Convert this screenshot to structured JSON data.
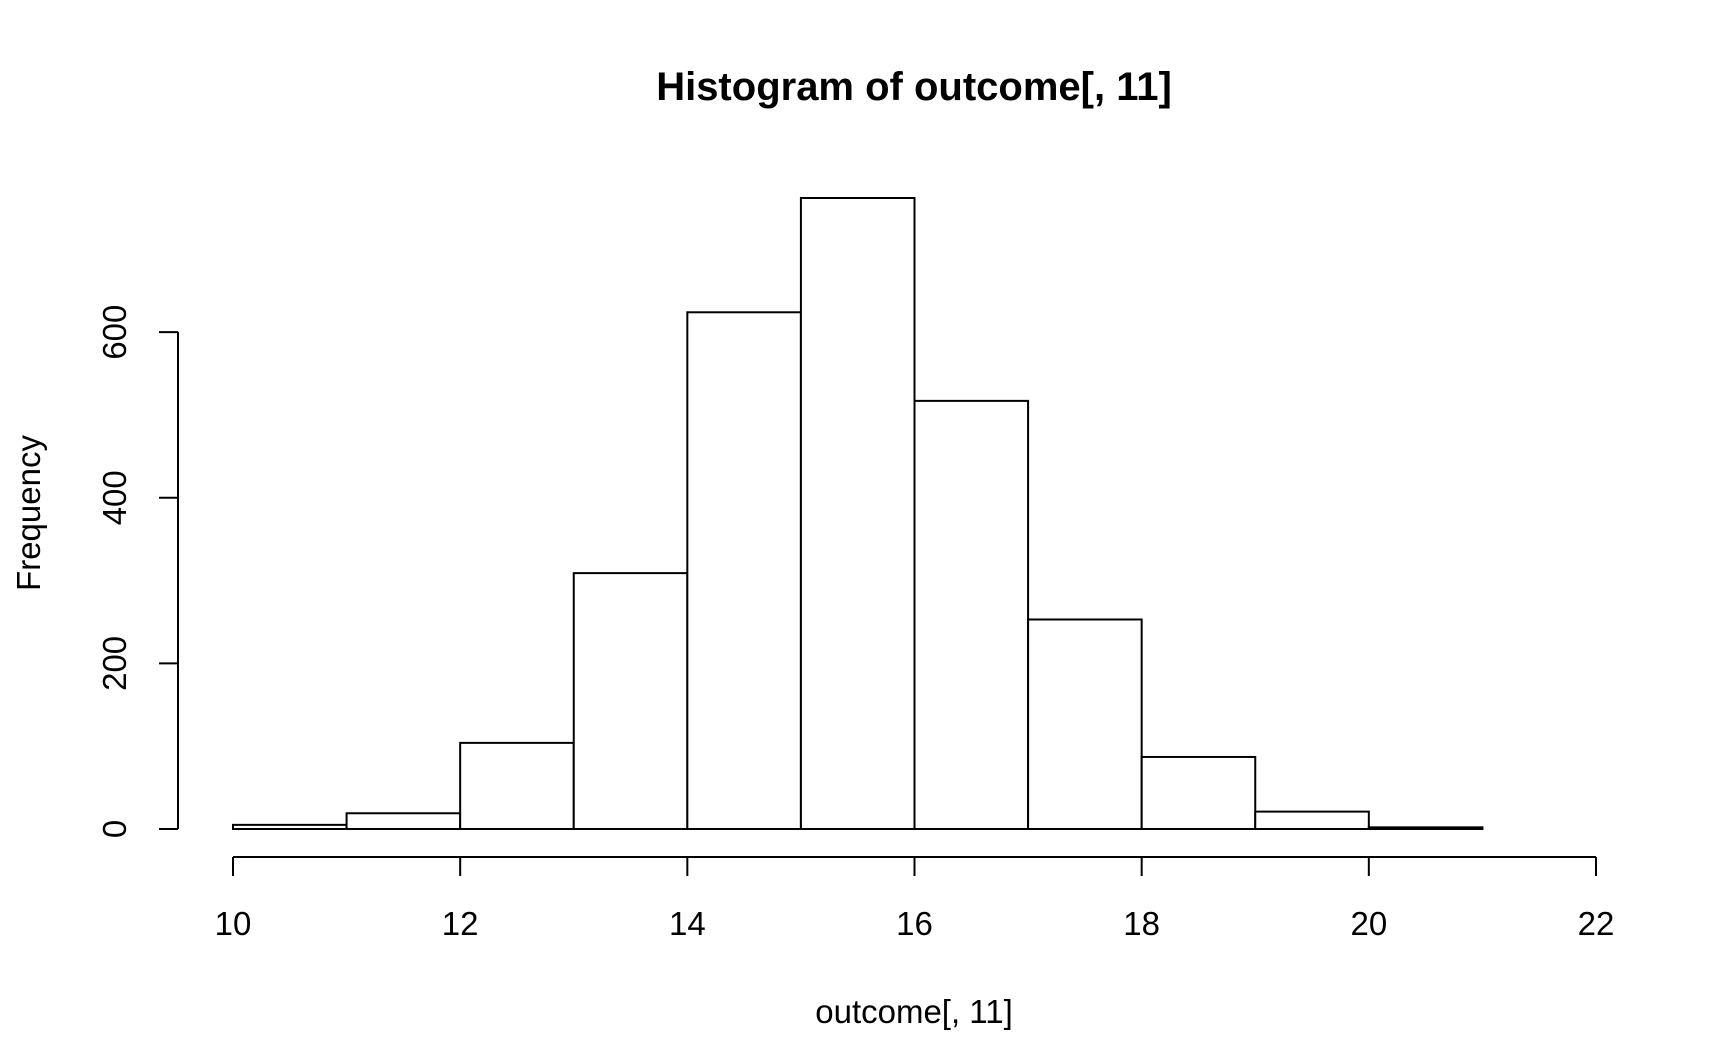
{
  "chart_data": {
    "type": "bar",
    "title": "Histogram of outcome[, 11]",
    "xlabel": "outcome[, 11]",
    "ylabel": "Frequency",
    "bins": [
      {
        "x0": 10,
        "x1": 11,
        "count": 5
      },
      {
        "x0": 11,
        "x1": 12,
        "count": 19
      },
      {
        "x0": 12,
        "x1": 13,
        "count": 104
      },
      {
        "x0": 13,
        "x1": 14,
        "count": 309
      },
      {
        "x0": 14,
        "x1": 15,
        "count": 624
      },
      {
        "x0": 15,
        "x1": 16,
        "count": 762
      },
      {
        "x0": 16,
        "x1": 17,
        "count": 517
      },
      {
        "x0": 17,
        "x1": 18,
        "count": 253
      },
      {
        "x0": 18,
        "x1": 19,
        "count": 87
      },
      {
        "x0": 19,
        "x1": 20,
        "count": 21
      },
      {
        "x0": 20,
        "x1": 21,
        "count": 2
      },
      {
        "x0": 21,
        "x1": 22,
        "count": 0
      }
    ],
    "xlim": [
      10,
      22
    ],
    "ylim": [
      0,
      762
    ],
    "x_ticks": [
      10,
      12,
      14,
      16,
      18,
      20,
      22
    ],
    "y_ticks": [
      0,
      200,
      400,
      600
    ],
    "grid": false,
    "legend": "none"
  }
}
